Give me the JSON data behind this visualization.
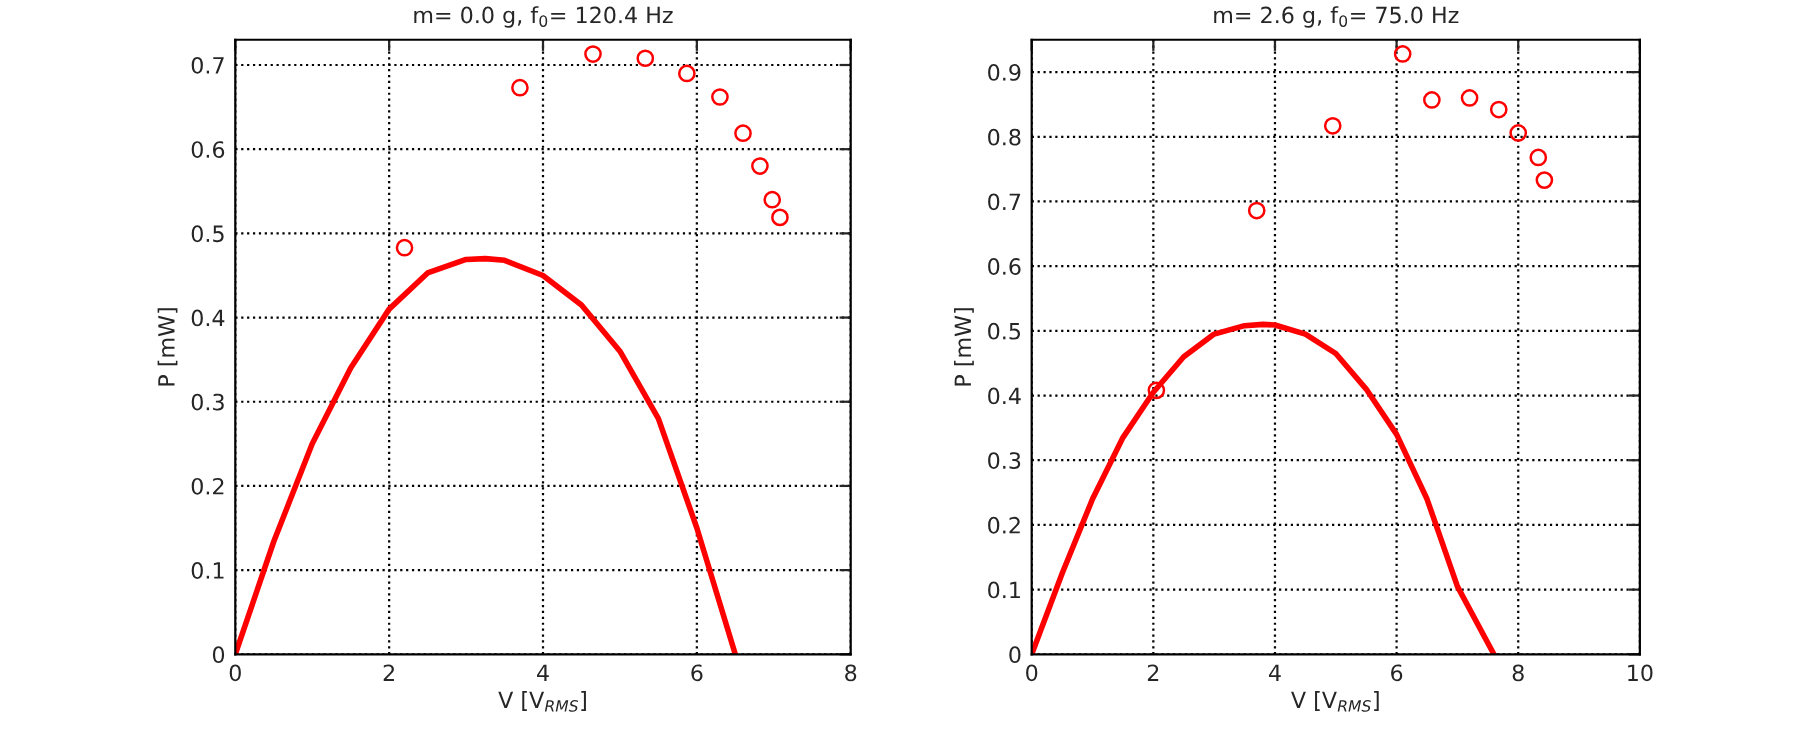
{
  "chart_data": [
    {
      "type": "scatter",
      "title": "m= 0.0 g, f$_{0}$= 120.4 Hz",
      "xlabel": "V [V$_{RMS}$]",
      "ylabel": "P [mW]",
      "xlim": [
        0,
        8
      ],
      "ylim": [
        0,
        0.73
      ],
      "xticks": [
        0,
        2,
        4,
        6,
        8
      ],
      "yticks": [
        0,
        0.1,
        0.2,
        0.3,
        0.4,
        0.5,
        0.6,
        0.7
      ],
      "grid": true,
      "series": [
        {
          "marker": "circle",
          "color": "#ff0000",
          "x": [
            2.2,
            3.7,
            4.65,
            5.33,
            5.87,
            6.3,
            6.6,
            6.82,
            6.98,
            7.08
          ],
          "values": [
            0.483,
            0.673,
            0.713,
            0.708,
            0.69,
            0.662,
            0.619,
            0.58,
            0.54,
            0.519
          ]
        },
        {
          "type": "line",
          "line_style": "solid",
          "color": "#ff0000",
          "x": [
            0,
            0.5,
            1,
            1.5,
            2,
            2.5,
            3,
            3.25,
            3.5,
            4,
            4.5,
            5,
            5.5,
            6,
            6.5
          ],
          "values": [
            0,
            0.134,
            0.25,
            0.34,
            0.41,
            0.453,
            0.469,
            0.47,
            0.468,
            0.45,
            0.415,
            0.36,
            0.28,
            0.15,
            0
          ]
        }
      ]
    },
    {
      "type": "scatter",
      "title": "m= 2.6 g, f$_{0}$= 75.0 Hz",
      "xlabel": "V [V$_{RMS}$]",
      "ylabel": "P [mW]",
      "xlim": [
        0,
        10
      ],
      "ylim": [
        0,
        0.95
      ],
      "xticks": [
        0,
        2,
        4,
        6,
        8,
        10
      ],
      "yticks": [
        0,
        0.1,
        0.2,
        0.3,
        0.4,
        0.5,
        0.6,
        0.7,
        0.8,
        0.9
      ],
      "grid": true,
      "series": [
        {
          "marker": "circle",
          "color": "#ff0000",
          "x": [
            2.05,
            3.7,
            4.95,
            6.1,
            6.58,
            7.2,
            7.68,
            8.0,
            8.33,
            8.43
          ],
          "values": [
            0.408,
            0.686,
            0.817,
            0.928,
            0.857,
            0.86,
            0.842,
            0.806,
            0.768,
            0.733
          ]
        },
        {
          "type": "line",
          "line_style": "solid",
          "color": "#ff0000",
          "x": [
            0,
            0.5,
            1,
            1.5,
            2,
            2.5,
            3,
            3.5,
            3.8,
            4,
            4.5,
            5,
            5.5,
            6,
            6.5,
            7,
            7.6
          ],
          "values": [
            0,
            0.125,
            0.24,
            0.335,
            0.405,
            0.46,
            0.495,
            0.508,
            0.51,
            0.509,
            0.495,
            0.465,
            0.41,
            0.34,
            0.24,
            0.105,
            0
          ]
        }
      ]
    }
  ]
}
